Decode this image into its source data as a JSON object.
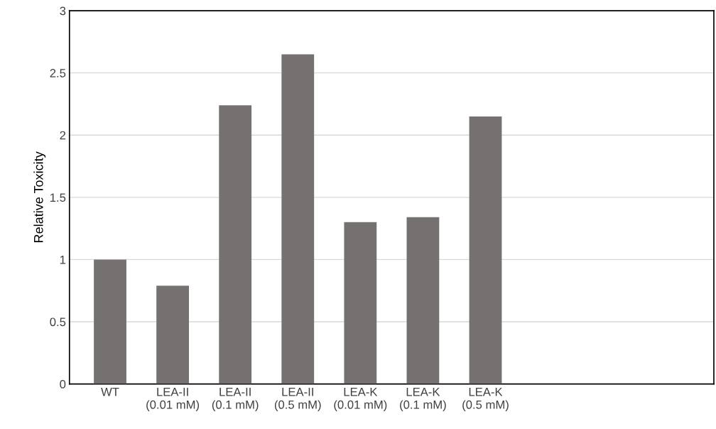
{
  "chart_data": {
    "type": "bar",
    "ylabel": "Relative Toxicity",
    "categories": [
      "WT",
      "LEA-II\n(0.01 mM)",
      "LEA-II\n(0.1 mM)",
      "LEA-II\n(0.5 mM)",
      "LEA-K\n(0.01 mM)",
      "LEA-K\n(0.1 mM)",
      "LEA-K\n(0.5 mM)",
      null,
      null,
      null
    ],
    "values": [
      1.0,
      0.79,
      2.24,
      2.65,
      1.3,
      1.34,
      2.15,
      null,
      null,
      null
    ],
    "color": "#767171",
    "ylim": [
      0,
      3
    ],
    "yticks": [
      0,
      0.5,
      1,
      1.5,
      2,
      2.5,
      3
    ],
    "grid": "y"
  }
}
